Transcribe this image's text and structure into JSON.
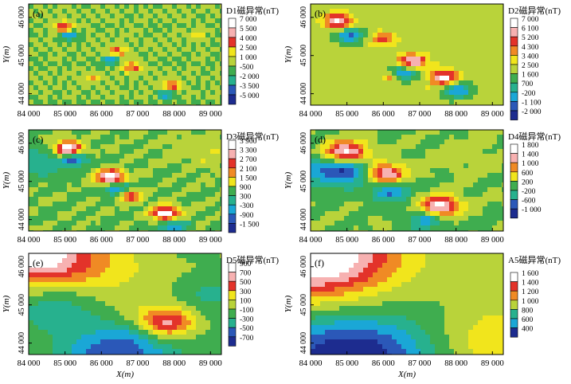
{
  "chart_data": [
    {
      "type": "heatmap",
      "panel_label": "(a)",
      "colorbar_title": "D1磁异常(nT)",
      "ticks": [
        "7 000",
        "5 500",
        "4 000",
        "2 500",
        "1 000",
        "-500",
        "-2 000",
        "-3 500",
        "-5 000"
      ],
      "ylabel": "Y(m)",
      "xlabel": "",
      "y_ticks": [
        "44 000",
        "45 000",
        "46 000"
      ],
      "x_ticks": [
        "84 000",
        "85 000",
        "86 000",
        "87 000",
        "88 000",
        "89 000"
      ],
      "xlim": [
        84000,
        89300
      ],
      "ylim": [
        43700,
        46350
      ],
      "colors": [
        "#1d2c8f",
        "#2b58b8",
        "#1aa7d6",
        "#27b18e",
        "#3fad4f",
        "#b9d33a",
        "#f1e51c",
        "#f08a24",
        "#e3332a",
        "#f7b1b1",
        "#ffffff"
      ]
    },
    {
      "type": "heatmap",
      "panel_label": "(b)",
      "colorbar_title": "D2磁异常(nT)",
      "ticks": [
        "7 000",
        "6 100",
        "5 200",
        "4 300",
        "3 400",
        "2 500",
        "1 600",
        "700",
        "-200",
        "-1 100",
        "-2 000"
      ],
      "ylabel": "Y(m)",
      "xlabel": "",
      "y_ticks": [
        "44 000",
        "45 000",
        "46 000"
      ],
      "x_ticks": [
        "84 000",
        "85 000",
        "86 000",
        "87 000",
        "88 000",
        "89 000"
      ],
      "xlim": [
        84000,
        89300
      ],
      "ylim": [
        43700,
        46350
      ],
      "colors": [
        "#1d2c8f",
        "#2b58b8",
        "#1aa7d6",
        "#27b18e",
        "#3fad4f",
        "#b9d33a",
        "#f1e51c",
        "#f08a24",
        "#e3332a",
        "#f7b1b1",
        "#ffffff"
      ]
    },
    {
      "type": "heatmap",
      "panel_label": "(c)",
      "colorbar_title": "D3磁异常(nT)",
      "ticks": [
        "3 900",
        "3 300",
        "2 700",
        "2 100",
        "1 500",
        "900",
        "300",
        "-300",
        "-900",
        "-1 500"
      ],
      "ylabel": "Y(m)",
      "xlabel": "",
      "y_ticks": [
        "44 000",
        "45 000",
        "46 000"
      ],
      "x_ticks": [
        "84 000",
        "85 000",
        "86 000",
        "87 000",
        "88 000",
        "89 000"
      ],
      "xlim": [
        84000,
        89300
      ],
      "ylim": [
        43700,
        46350
      ],
      "colors": [
        "#1d2c8f",
        "#2b58b8",
        "#1aa7d6",
        "#27b18e",
        "#3fad4f",
        "#b9d33a",
        "#f1e51c",
        "#f08a24",
        "#e3332a",
        "#f7b1b1",
        "#ffffff"
      ]
    },
    {
      "type": "heatmap",
      "panel_label": "(d)",
      "colorbar_title": "D4磁异常(nT)",
      "ticks": [
        "1 800",
        "1 400",
        "1 000",
        "600",
        "200",
        "-200",
        "-600",
        "-1 000"
      ],
      "ylabel": "Y(m)",
      "xlabel": "",
      "y_ticks": [
        "44 000",
        "45 000",
        "46 000"
      ],
      "x_ticks": [
        "84 000",
        "85 000",
        "86 000",
        "87 000",
        "88 000",
        "89 000"
      ],
      "xlim": [
        84000,
        89300
      ],
      "ylim": [
        43700,
        46350
      ],
      "colors": [
        "#1d2c8f",
        "#2b58b8",
        "#1aa7d6",
        "#27b18e",
        "#3fad4f",
        "#b9d33a",
        "#f1e51c",
        "#f08a24",
        "#e3332a",
        "#f7b1b1",
        "#ffffff"
      ]
    },
    {
      "type": "heatmap",
      "panel_label": "(e)",
      "colorbar_title": "D5磁异常(nT)",
      "ticks": [
        "900",
        "700",
        "500",
        "300",
        "100",
        "-100",
        "-300",
        "-500",
        "-700"
      ],
      "ylabel": "Y(m)",
      "xlabel": "X(m)",
      "y_ticks": [
        "44 000",
        "45 000",
        "46 000"
      ],
      "x_ticks": [
        "84 000",
        "85 000",
        "86 000",
        "87 000",
        "88 000",
        "89 000"
      ],
      "xlim": [
        84000,
        89300
      ],
      "ylim": [
        43700,
        46350
      ],
      "colors": [
        "#1d2c8f",
        "#2b58b8",
        "#1aa7d6",
        "#27b18e",
        "#3fad4f",
        "#b9d33a",
        "#f1e51c",
        "#f08a24",
        "#e3332a",
        "#f7b1b1",
        "#ffffff"
      ]
    },
    {
      "type": "heatmap",
      "panel_label": "(f)",
      "colorbar_title": "A5磁异常(nT)",
      "ticks": [
        "1 600",
        "1 400",
        "1 200",
        "1 000",
        "800",
        "600",
        "400"
      ],
      "ylabel": "Y(m)",
      "xlabel": "X(m)",
      "y_ticks": [
        "44 000",
        "45 000",
        "46 000"
      ],
      "x_ticks": [
        "84 000",
        "85 000",
        "86 000",
        "87 000",
        "88 000",
        "89 000"
      ],
      "xlim": [
        84000,
        89300
      ],
      "ylim": [
        43700,
        46350
      ],
      "colors": [
        "#1d2c8f",
        "#2b58b8",
        "#1aa7d6",
        "#27b18e",
        "#3fad4f",
        "#b9d33a",
        "#f1e51c",
        "#f08a24",
        "#e3332a",
        "#f7b1b1",
        "#ffffff"
      ]
    }
  ]
}
